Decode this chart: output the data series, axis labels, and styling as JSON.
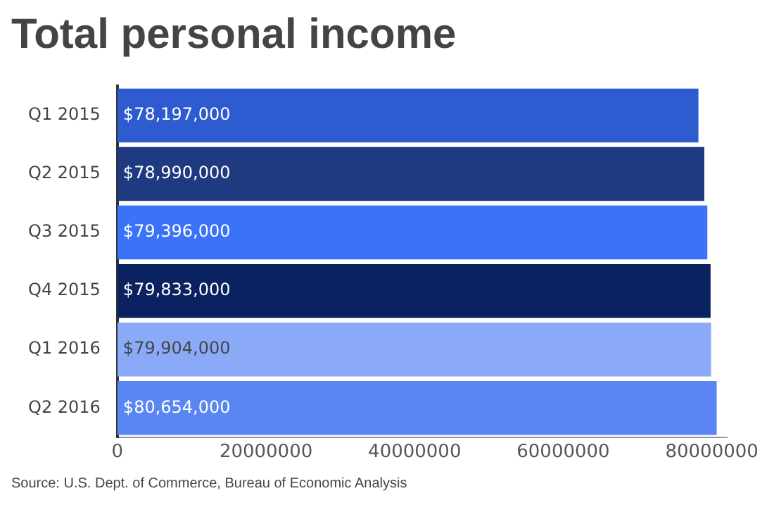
{
  "chart_data": {
    "type": "bar",
    "orientation": "horizontal",
    "title": "Total personal income",
    "categories": [
      "Q1 2015",
      "Q2 2015",
      "Q3 2015",
      "Q4 2015",
      "Q1 2016",
      "Q2 2016"
    ],
    "values": [
      78197000,
      78990000,
      79396000,
      79833000,
      79904000,
      80654000
    ],
    "colors": [
      "#2f5bd0",
      "#1f3a80",
      "#3a72f8",
      "#0b2260",
      "#8aaaf8",
      "#5a86f4"
    ],
    "value_labels": [
      "$78,197,000",
      "$78,990,000",
      "$79,396,000",
      "$79,833,000",
      "$79,904,000",
      "$80,654,000"
    ],
    "xlim": [
      0,
      82000000
    ],
    "xticks": [
      0,
      20000000,
      40000000,
      60000000,
      80000000
    ],
    "grid": false,
    "legend": false,
    "annotations": [
      "Source: U.S. Dept. of Commerce, Bureau of Economic Analysis"
    ]
  }
}
